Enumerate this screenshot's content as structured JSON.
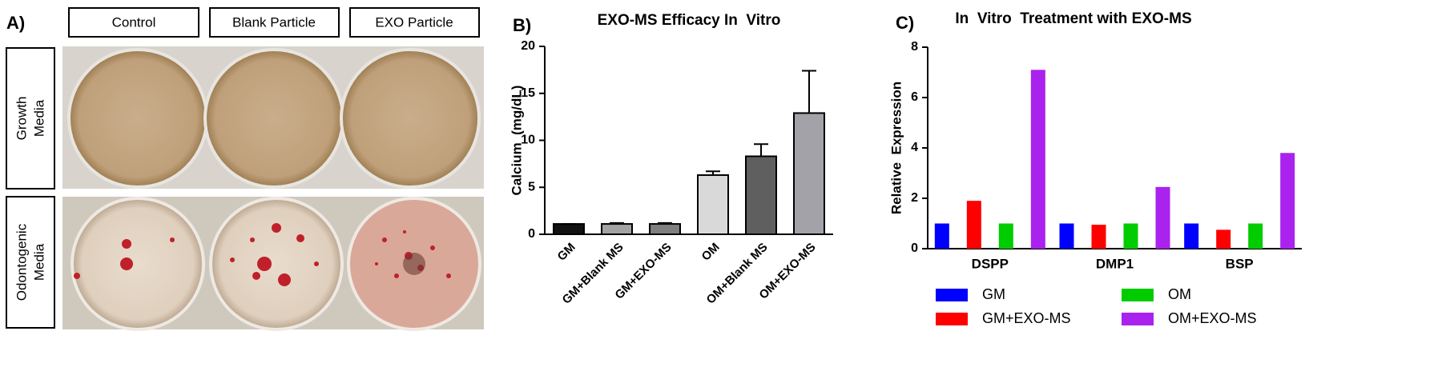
{
  "panel_a": {
    "label": "A)",
    "columns": [
      "Control",
      "Blank Particle",
      "EXO Particle"
    ],
    "rows": [
      [
        "Growth",
        "Media"
      ],
      [
        "Odontogenic",
        "Media"
      ]
    ]
  },
  "panel_labels": [
    "B)",
    "C)"
  ],
  "chart_data": [
    {
      "type": "bar",
      "title": "EXO-MS Efficacy In  Vitro",
      "y_label": "Calcium  (mg/dL)",
      "categories": [
        "GM",
        "GM+Blank MS",
        "GM+EXO-MS",
        "OM",
        "OM+Blank MS",
        "OM+EXO-MS"
      ],
      "values": [
        1.1,
        1.1,
        1.1,
        6.3,
        8.3,
        12.9
      ],
      "errors": [
        0,
        0.1,
        0.1,
        0.4,
        1.3,
        4.5
      ],
      "colors": [
        "#111111",
        "#a3a3a3",
        "#7f7f7f",
        "#d9d9d9",
        "#5f5f5f",
        "#a2a2a8"
      ],
      "ylim": [
        0,
        20
      ],
      "yticks": [
        0,
        5,
        10,
        15,
        20
      ]
    },
    {
      "type": "bar",
      "title": "In  Vitro  Treatment with EXO-MS",
      "y_label": "Relative  Expression",
      "categories": [
        "DSPP",
        "DMP1",
        "BSP"
      ],
      "series": [
        {
          "name": "GM",
          "color": "#0000ff",
          "values": [
            1,
            1,
            1
          ]
        },
        {
          "name": "GM+EXO-MS",
          "color": "#ff0000",
          "values": [
            1.9,
            0.95,
            0.75
          ]
        },
        {
          "name": "OM",
          "color": "#00cc00",
          "values": [
            1,
            1,
            1
          ]
        },
        {
          "name": "OM+EXO-MS",
          "color": "#aa22ee",
          "values": [
            7.1,
            2.45,
            3.8
          ]
        }
      ],
      "ylim": [
        0,
        8
      ],
      "yticks": [
        0,
        2,
        4,
        6,
        8
      ]
    }
  ]
}
